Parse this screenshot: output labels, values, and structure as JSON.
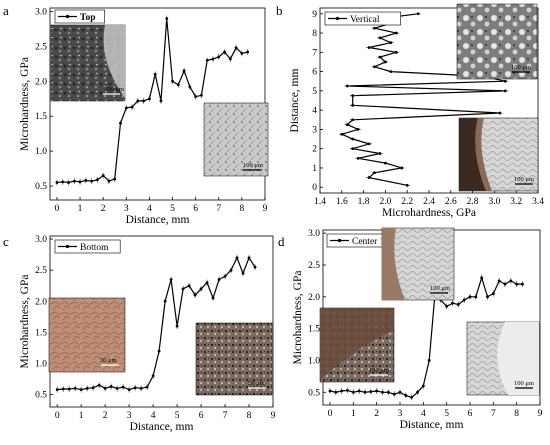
{
  "chart_data": [
    {
      "panel": "a",
      "type": "line",
      "title": "",
      "legend": "Top",
      "xlabel": "Distance, mm",
      "ylabel": "Microhardness, GPa",
      "xlim": [
        -0.3,
        9.0
      ],
      "ylim": [
        0.3,
        3.05
      ],
      "xticks": [
        0,
        1,
        2,
        3,
        4,
        5,
        6,
        7,
        8,
        9
      ],
      "yticks": [
        0.5,
        1.0,
        1.5,
        2.0,
        2.5,
        3.0
      ],
      "x": [
        0.0,
        0.25,
        0.5,
        0.75,
        1.0,
        1.25,
        1.5,
        1.75,
        2.0,
        2.25,
        2.5,
        2.75,
        3.0,
        3.25,
        3.5,
        3.75,
        4.0,
        4.25,
        4.5,
        4.75,
        5.0,
        5.25,
        5.5,
        5.75,
        6.0,
        6.25,
        6.5,
        6.75,
        7.0,
        7.25,
        7.5,
        7.75,
        8.0,
        8.25
      ],
      "y": [
        0.55,
        0.56,
        0.55,
        0.57,
        0.56,
        0.58,
        0.57,
        0.59,
        0.65,
        0.57,
        0.6,
        1.4,
        1.62,
        1.63,
        1.72,
        1.72,
        1.75,
        2.1,
        1.72,
        2.9,
        2.0,
        1.95,
        2.15,
        1.92,
        1.78,
        1.8,
        2.3,
        2.32,
        2.35,
        2.42,
        2.32,
        2.48,
        2.4,
        2.42
      ],
      "insets": [
        {
          "scale": "500 μm"
        },
        {
          "scale": "100 μm"
        }
      ]
    },
    {
      "panel": "b",
      "type": "line",
      "title": "",
      "legend": "Vertical",
      "xlabel": "Microhardness, GPa",
      "ylabel": "Distance, mm",
      "xlim": [
        1.4,
        3.4
      ],
      "ylim": [
        -0.3,
        9.3
      ],
      "xticks": [
        1.4,
        1.6,
        1.8,
        2.0,
        2.2,
        2.4,
        2.6,
        2.8,
        3.0,
        3.2,
        3.4
      ],
      "yticks": [
        0,
        1,
        2,
        3,
        4,
        5,
        6,
        7,
        8,
        9
      ],
      "x": [
        2.3,
        1.95,
        2.05,
        1.9,
        2.1,
        1.95,
        2.05,
        1.85,
        2.1,
        1.95,
        2.0,
        1.9,
        2.05,
        2.9,
        3.1,
        1.65,
        3.1,
        1.7,
        1.7,
        3.05,
        1.7,
        1.65,
        1.75,
        1.6,
        1.7,
        1.85,
        1.7,
        1.95,
        1.75,
        2.0,
        2.15,
        1.9,
        1.85,
        2.2
      ],
      "y": [
        9.0,
        8.75,
        8.5,
        8.25,
        8.0,
        7.75,
        7.5,
        7.25,
        7.0,
        6.75,
        6.5,
        6.25,
        6.0,
        5.75,
        5.5,
        5.25,
        5.0,
        4.75,
        4.25,
        3.85,
        3.5,
        3.25,
        3.0,
        2.75,
        2.5,
        2.25,
        2.0,
        1.75,
        1.5,
        1.25,
        1.0,
        0.75,
        0.5,
        0.1
      ],
      "insets": [
        {
          "scale": "100 μm"
        },
        {
          "scale": "100 μm"
        }
      ]
    },
    {
      "panel": "c",
      "type": "line",
      "title": "",
      "legend": "Bottom",
      "xlabel": "Distance, mm",
      "ylabel": "Microhardness, GPa",
      "xlim": [
        -0.3,
        9.0
      ],
      "ylim": [
        0.3,
        3.05
      ],
      "xticks": [
        0,
        1,
        2,
        3,
        4,
        5,
        6,
        7,
        8,
        9
      ],
      "yticks": [
        0.5,
        1.0,
        1.5,
        2.0,
        2.5,
        3.0
      ],
      "x": [
        0.0,
        0.25,
        0.5,
        0.75,
        1.0,
        1.25,
        1.5,
        1.75,
        2.0,
        2.25,
        2.5,
        2.75,
        3.0,
        3.25,
        3.5,
        3.75,
        4.0,
        4.25,
        4.5,
        4.75,
        5.0,
        5.25,
        5.5,
        5.75,
        6.0,
        6.25,
        6.5,
        6.75,
        7.0,
        7.25,
        7.5,
        7.75,
        8.0,
        8.25
      ],
      "y": [
        0.58,
        0.59,
        0.59,
        0.6,
        0.58,
        0.6,
        0.61,
        0.65,
        0.6,
        0.63,
        0.6,
        0.62,
        0.58,
        0.61,
        0.6,
        0.62,
        0.8,
        1.2,
        2.0,
        2.35,
        1.6,
        2.2,
        2.25,
        2.1,
        2.2,
        2.3,
        2.05,
        2.35,
        2.4,
        2.5,
        2.7,
        2.45,
        2.7,
        2.55
      ],
      "insets": [
        {
          "scale": "50 μm"
        },
        {
          "scale": "50 μm"
        }
      ]
    },
    {
      "panel": "d",
      "type": "line",
      "title": "",
      "legend": "Center 1",
      "xlabel": "Distance, mm",
      "ylabel": "Microhardness, GPa",
      "xlim": [
        -0.3,
        9.0
      ],
      "ylim": [
        0.3,
        3.05
      ],
      "xticks": [
        0,
        1,
        2,
        3,
        4,
        5,
        6,
        7,
        8,
        9
      ],
      "yticks": [
        0.5,
        1.0,
        1.5,
        2.0,
        2.5,
        3.0
      ],
      "x": [
        0.0,
        0.25,
        0.5,
        0.75,
        1.0,
        1.25,
        1.5,
        1.75,
        2.0,
        2.25,
        2.5,
        2.75,
        3.0,
        3.25,
        3.5,
        3.75,
        4.0,
        4.25,
        4.5,
        4.75,
        5.0,
        5.25,
        5.5,
        5.75,
        6.0,
        6.25,
        6.5,
        6.75,
        7.0,
        7.25,
        7.5,
        7.75,
        8.0,
        8.25
      ],
      "y": [
        0.52,
        0.5,
        0.52,
        0.53,
        0.5,
        0.52,
        0.5,
        0.51,
        0.52,
        0.5,
        0.5,
        0.47,
        0.5,
        0.45,
        0.42,
        0.5,
        0.6,
        1.0,
        2.05,
        1.95,
        1.85,
        1.9,
        1.88,
        1.95,
        2.0,
        2.0,
        2.3,
        2.0,
        2.05,
        2.25,
        2.2,
        2.25,
        2.2,
        2.2
      ],
      "insets": [
        {
          "scale": "100 μm"
        },
        {
          "scale": "100 μm"
        },
        {
          "scale": "100 μm"
        }
      ]
    }
  ],
  "colors": {
    "line": "#000000",
    "inset_dark": "#3a3a3a",
    "inset_grey": "#bdbdbd",
    "inset_copper": "#b4826a",
    "inset_brown": "#6b4a3a"
  }
}
